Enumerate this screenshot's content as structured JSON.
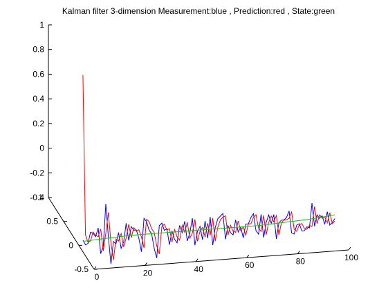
{
  "chart_data": {
    "type": "line",
    "title": "Kalman filter 3-dimension Measurement:blue , Prediction:red , State:green",
    "projection": "3d",
    "xlabel": "",
    "ylabel": "",
    "zlabel": "",
    "xlim": [
      0,
      100
    ],
    "ylim": [
      -0.5,
      1
    ],
    "zlim": [
      -0.4,
      1
    ],
    "xticks": [
      "0",
      "20",
      "40",
      "60",
      "80",
      "100"
    ],
    "yticks": [
      "-0.5",
      "0",
      "0.5",
      "1"
    ],
    "zticks": [
      "-0.4",
      "-0.2",
      "0",
      "0.2",
      "0.4",
      "0.6",
      "0.8",
      "1"
    ],
    "grid": false,
    "series": [
      {
        "name": "Measurement",
        "color": "#0000ff",
        "x": [
          1,
          2,
          3,
          4,
          5,
          6,
          7,
          8,
          9,
          10,
          11,
          12,
          13,
          14,
          15,
          16,
          17,
          18,
          19,
          20,
          21,
          22,
          23,
          24,
          25,
          26,
          27,
          28,
          29,
          30,
          31,
          32,
          33,
          34,
          35,
          36,
          37,
          38,
          39,
          40,
          41,
          42,
          43,
          44,
          45,
          46,
          47,
          48,
          49,
          50,
          51,
          52,
          53,
          54,
          55,
          56,
          57,
          58,
          59,
          60,
          61,
          62,
          63,
          64,
          65,
          66,
          67,
          68,
          69,
          70,
          71,
          72,
          73,
          74,
          75,
          76,
          77,
          78,
          79,
          80,
          81,
          82,
          83,
          84,
          85,
          86,
          87,
          88,
          89,
          90,
          91,
          92,
          93,
          94,
          95,
          96,
          97,
          98,
          99,
          100
        ],
        "y": [
          -0.05,
          -0.05,
          -0.05,
          -0.05,
          -0.05,
          -0.05,
          -0.05,
          -0.05,
          -0.05,
          -0.05,
          -0.05,
          -0.05,
          -0.05,
          -0.05,
          -0.05,
          -0.05,
          -0.05,
          -0.05,
          -0.05,
          -0.05,
          -0.05,
          -0.05,
          -0.05,
          -0.05,
          -0.05,
          -0.05,
          -0.05,
          -0.05,
          -0.05,
          -0.05,
          -0.05,
          -0.05,
          -0.05,
          -0.05,
          -0.05,
          -0.05,
          -0.05,
          -0.05,
          -0.05,
          -0.05,
          -0.05,
          -0.05,
          -0.05,
          -0.05,
          -0.05,
          -0.05,
          -0.05,
          -0.05,
          -0.05,
          -0.05,
          -0.05,
          -0.05,
          -0.05,
          -0.05,
          -0.05,
          -0.05,
          -0.05,
          -0.05,
          -0.05,
          -0.05,
          -0.05,
          -0.05,
          -0.05,
          -0.05,
          -0.05,
          -0.05,
          -0.05,
          -0.05,
          -0.05,
          -0.05,
          -0.05,
          -0.05,
          -0.05,
          -0.05,
          -0.05,
          -0.05,
          -0.05,
          -0.05,
          -0.05,
          -0.05,
          -0.05,
          -0.05,
          -0.05,
          -0.05,
          -0.05,
          -0.05,
          -0.05,
          -0.05,
          -0.05,
          -0.05,
          -0.05,
          -0.05,
          -0.05,
          -0.05,
          -0.05,
          -0.05,
          -0.05,
          -0.05,
          -0.05,
          -0.05
        ],
        "z": [
          -0.34,
          -0.38,
          -0.37,
          -0.28,
          -0.29,
          -0.32,
          -0.25,
          -0.46,
          -0.4,
          -0.06,
          -0.33,
          -0.55,
          -0.37,
          -0.39,
          -0.3,
          -0.43,
          -0.38,
          -0.23,
          -0.37,
          -0.26,
          -0.29,
          -0.29,
          -0.36,
          -0.47,
          -0.2,
          -0.23,
          -0.3,
          -0.33,
          -0.45,
          -0.53,
          -0.27,
          -0.25,
          -0.31,
          -0.3,
          -0.43,
          -0.32,
          -0.39,
          -0.42,
          -0.28,
          -0.34,
          -0.25,
          -0.41,
          -0.35,
          -0.23,
          -0.45,
          -0.34,
          -0.3,
          -0.41,
          -0.26,
          -0.4,
          -0.23,
          -0.46,
          -0.32,
          -0.25,
          -0.23,
          -0.21,
          -0.42,
          -0.31,
          -0.37,
          -0.39,
          -0.27,
          -0.37,
          -0.33,
          -0.42,
          -0.31,
          -0.31,
          -0.26,
          -0.23,
          -0.37,
          -0.4,
          -0.24,
          -0.43,
          -0.31,
          -0.25,
          -0.32,
          -0.25,
          -0.45,
          -0.32,
          -0.3,
          -0.3,
          -0.28,
          -0.23,
          -0.41,
          -0.42,
          -0.35,
          -0.34,
          -0.4,
          -0.4,
          -0.37,
          -0.38,
          -0.18,
          -0.37,
          -0.28,
          -0.31,
          -0.29,
          -0.36,
          -0.26,
          -0.37,
          -0.35,
          -0.32
        ]
      },
      {
        "name": "Prediction",
        "color": "#ff0000",
        "x": [
          1,
          2,
          3,
          4,
          5,
          6,
          7,
          8,
          9,
          10,
          11,
          12,
          13,
          14,
          15,
          16,
          17,
          18,
          19,
          20,
          21,
          22,
          23,
          24,
          25,
          26,
          27,
          28,
          29,
          30,
          31,
          32,
          33,
          34,
          35,
          36,
          37,
          38,
          39,
          40,
          41,
          42,
          43,
          44,
          45,
          46,
          47,
          48,
          49,
          50,
          51,
          52,
          53,
          54,
          55,
          56,
          57,
          58,
          59,
          60,
          61,
          62,
          63,
          64,
          65,
          66,
          67,
          68,
          69,
          70,
          71,
          72,
          73,
          74,
          75,
          76,
          77,
          78,
          79,
          80,
          81,
          82,
          83,
          84,
          85,
          86,
          87,
          88,
          89,
          90,
          91,
          92,
          93,
          94,
          95,
          96,
          97,
          98,
          99,
          100
        ],
        "y": [
          -0.05,
          -0.05,
          -0.05,
          -0.05,
          -0.05,
          -0.05,
          -0.05,
          -0.05,
          -0.05,
          -0.05,
          -0.05,
          -0.05,
          -0.05,
          -0.05,
          -0.05,
          -0.05,
          -0.05,
          -0.05,
          -0.05,
          -0.05,
          -0.05,
          -0.05,
          -0.05,
          -0.05,
          -0.05,
          -0.05,
          -0.05,
          -0.05,
          -0.05,
          -0.05,
          -0.05,
          -0.05,
          -0.05,
          -0.05,
          -0.05,
          -0.05,
          -0.05,
          -0.05,
          -0.05,
          -0.05,
          -0.05,
          -0.05,
          -0.05,
          -0.05,
          -0.05,
          -0.05,
          -0.05,
          -0.05,
          -0.05,
          -0.05,
          -0.05,
          -0.05,
          -0.05,
          -0.05,
          -0.05,
          -0.05,
          -0.05,
          -0.05,
          -0.05,
          -0.05,
          -0.05,
          -0.05,
          -0.05,
          -0.05,
          -0.05,
          -0.05,
          -0.05,
          -0.05,
          -0.05,
          -0.05,
          -0.05,
          -0.05,
          -0.05,
          -0.05,
          -0.05,
          -0.05,
          -0.05,
          -0.05,
          -0.05,
          -0.05,
          -0.05,
          -0.05,
          -0.05,
          -0.05,
          -0.05,
          -0.05,
          -0.05,
          -0.05,
          -0.05,
          -0.05,
          -0.05,
          -0.05,
          -0.05,
          -0.05,
          -0.05,
          -0.05,
          -0.05,
          -0.05,
          -0.05,
          -0.05
        ],
        "z": [
          1.0,
          -0.3,
          -0.36,
          -0.35,
          -0.28,
          -0.31,
          -0.32,
          -0.26,
          -0.44,
          -0.3,
          -0.13,
          -0.38,
          -0.52,
          -0.35,
          -0.37,
          -0.31,
          -0.42,
          -0.35,
          -0.24,
          -0.35,
          -0.27,
          -0.3,
          -0.29,
          -0.35,
          -0.44,
          -0.21,
          -0.23,
          -0.29,
          -0.32,
          -0.43,
          -0.5,
          -0.28,
          -0.26,
          -0.31,
          -0.3,
          -0.41,
          -0.31,
          -0.37,
          -0.4,
          -0.28,
          -0.34,
          -0.26,
          -0.39,
          -0.35,
          -0.24,
          -0.42,
          -0.34,
          -0.31,
          -0.39,
          -0.28,
          -0.38,
          -0.24,
          -0.43,
          -0.32,
          -0.26,
          -0.24,
          -0.23,
          -0.39,
          -0.31,
          -0.36,
          -0.37,
          -0.28,
          -0.36,
          -0.33,
          -0.4,
          -0.31,
          -0.31,
          -0.26,
          -0.24,
          -0.35,
          -0.38,
          -0.25,
          -0.41,
          -0.31,
          -0.26,
          -0.31,
          -0.26,
          -0.42,
          -0.32,
          -0.3,
          -0.3,
          -0.29,
          -0.24,
          -0.38,
          -0.4,
          -0.35,
          -0.34,
          -0.38,
          -0.39,
          -0.36,
          -0.37,
          -0.21,
          -0.35,
          -0.28,
          -0.31,
          -0.3,
          -0.35,
          -0.27,
          -0.36,
          -0.34
        ]
      },
      {
        "name": "State",
        "color": "#00cc00",
        "x": [
          1,
          10,
          20,
          30,
          40,
          50,
          60,
          70,
          80,
          90,
          100
        ],
        "y": [
          -0.05,
          -0.05,
          -0.05,
          -0.05,
          -0.05,
          -0.05,
          -0.05,
          -0.05,
          -0.05,
          -0.05,
          -0.05
        ],
        "z": [
          -0.35,
          -0.34,
          -0.33,
          -0.33,
          -0.33,
          -0.33,
          -0.33,
          -0.33,
          -0.32,
          -0.31,
          -0.29
        ]
      }
    ]
  }
}
